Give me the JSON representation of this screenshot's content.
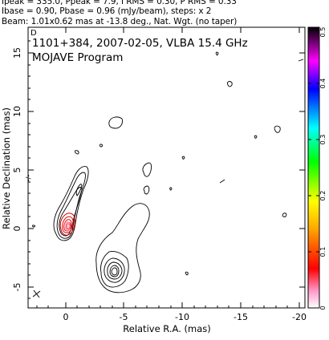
{
  "header": {
    "line1": "Ipeak = 335.0, Ppeak = 7.9, I RMS = 0.30, P RMS = 0.33",
    "line2": "Ibase = 0.90, Pbase = 0.96 (mJy/beam), steps: x 2",
    "line3": "Beam: 1.01x0.62 mas at -13.8 deg., Nat. Wgt. (no taper)"
  },
  "panel": {
    "corner_letter": "D",
    "title_line1": "1101+384, 2007-02-05, VLBA 15.4 GHz",
    "title_line2": "MOJAVE Program"
  },
  "axes": {
    "xlabel": "Relative R.A. (mas)",
    "ylabel": "Relative Declination (mas)",
    "x_ticks": [
      "0",
      "-5",
      "-10",
      "-15",
      "-20"
    ],
    "y_ticks": [
      "15",
      "10",
      "5",
      "0",
      "-5"
    ],
    "y_stub_label": "-/-"
  },
  "colorbar": {
    "ticks": [
      "0",
      "0.1",
      "0.2",
      "0.3",
      "0.4",
      "0.5"
    ],
    "colors": [
      "#ffffff",
      "#ff66aa",
      "#ff0000",
      "#ffa500",
      "#ffff00",
      "#00ff00",
      "#00ffff",
      "#0000ff",
      "#ff00ff",
      "#000000"
    ]
  }
}
